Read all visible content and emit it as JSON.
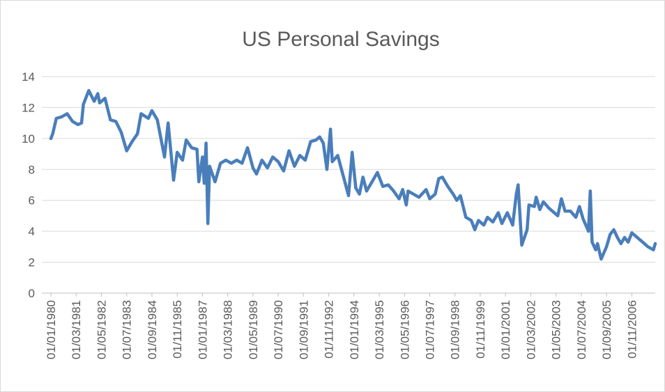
{
  "chart_data": {
    "type": "line",
    "title": "US Personal Savings",
    "x": [
      "01/01/1980",
      "01/02/1980",
      "01/04/1980",
      "01/07/1980",
      "01/10/1980",
      "01/01/1981",
      "01/04/1981",
      "01/06/1981",
      "01/07/1981",
      "01/10/1981",
      "01/01/1982",
      "01/03/1982",
      "01/04/1982",
      "01/07/1982",
      "01/10/1982",
      "01/01/1983",
      "01/04/1983",
      "01/07/1983",
      "01/10/1983",
      "01/01/1984",
      "01/03/1984",
      "01/07/1984",
      "01/09/1984",
      "01/12/1984",
      "01/04/1985",
      "01/06/1985",
      "01/09/1985",
      "01/11/1985",
      "01/02/1986",
      "01/04/1986",
      "01/07/1986",
      "01/10/1986",
      "01/11/1986",
      "01/01/1987",
      "01/02/1987",
      "01/03/1987",
      "01/04/1987",
      "01/05/1987",
      "01/08/1987",
      "01/11/1987",
      "01/02/1988",
      "01/05/1988",
      "01/08/1988",
      "01/11/1988",
      "01/02/1989",
      "01/05/1989",
      "01/07/1989",
      "01/10/1989",
      "01/01/1990",
      "01/04/1990",
      "01/07/1990",
      "01/10/1990",
      "01/01/1991",
      "01/04/1991",
      "01/07/1991",
      "01/10/1991",
      "01/01/1992",
      "01/04/1992",
      "01/06/1992",
      "01/08/1992",
      "01/10/1992",
      "01/12/1992",
      "01/01/1993",
      "01/04/1993",
      "01/07/1993",
      "01/10/1993",
      "01/12/1993",
      "01/02/1994",
      "01/04/1994",
      "01/06/1994",
      "01/08/1994",
      "01/11/1994",
      "01/02/1995",
      "01/05/1995",
      "01/08/1995",
      "01/11/1995",
      "01/02/1996",
      "01/04/1996",
      "01/06/1996",
      "01/07/1996",
      "01/10/1996",
      "01/01/1997",
      "01/05/1997",
      "01/07/1997",
      "01/10/1997",
      "01/12/1997",
      "01/02/1998",
      "01/05/1998",
      "01/08/1998",
      "01/10/1998",
      "01/12/1998",
      "01/03/1999",
      "01/06/1999",
      "01/08/1999",
      "01/10/1999",
      "01/01/2000",
      "01/03/2000",
      "01/06/2000",
      "01/09/2000",
      "01/11/2000",
      "01/02/2001",
      "01/05/2001",
      "01/07/2001",
      "01/08/2001",
      "01/10/2001",
      "01/01/2002",
      "01/02/2002",
      "01/05/2002",
      "01/06/2002",
      "01/08/2002",
      "01/10/2002",
      "01/01/2003",
      "01/04/2003",
      "01/06/2003",
      "01/08/2003",
      "01/10/2003",
      "01/01/2004",
      "01/04/2004",
      "01/06/2004",
      "01/08/2004",
      "01/11/2004",
      "01/12/2004",
      "01/01/2005",
      "01/03/2005",
      "01/04/2005",
      "01/06/2005",
      "01/09/2005",
      "01/11/2005",
      "01/01/2006",
      "01/03/2006",
      "01/05/2006",
      "01/07/2006",
      "01/09/2006",
      "01/11/2006",
      "01/02/2007",
      "01/05/2007",
      "01/08/2007",
      "01/11/2007",
      "01/12/2007"
    ],
    "series": [
      {
        "color": "#4a7ebb",
        "values": [
          10.0,
          10.3,
          11.3,
          11.4,
          11.6,
          11.1,
          10.9,
          11.0,
          12.2,
          13.1,
          12.4,
          12.9,
          12.3,
          12.6,
          11.2,
          11.1,
          10.4,
          9.2,
          9.8,
          10.3,
          11.6,
          11.3,
          11.8,
          11.2,
          8.8,
          11.0,
          7.3,
          9.1,
          8.6,
          9.9,
          9.4,
          9.3,
          7.2,
          8.8,
          7.1,
          9.7,
          4.5,
          8.2,
          7.2,
          8.4,
          8.6,
          8.4,
          8.6,
          8.4,
          9.4,
          8.1,
          7.7,
          8.6,
          8.1,
          8.8,
          8.5,
          7.9,
          9.2,
          8.2,
          8.9,
          8.6,
          9.8,
          9.9,
          10.1,
          9.7,
          8.0,
          10.6,
          8.5,
          8.9,
          7.6,
          6.3,
          9.1,
          6.8,
          6.4,
          7.5,
          6.6,
          7.2,
          7.8,
          6.9,
          7.0,
          6.6,
          6.1,
          6.7,
          5.7,
          6.6,
          6.4,
          6.2,
          6.7,
          6.1,
          6.4,
          7.4,
          7.5,
          6.9,
          6.4,
          6.0,
          6.3,
          4.9,
          4.7,
          4.1,
          4.7,
          4.4,
          4.9,
          4.6,
          5.2,
          4.5,
          5.2,
          4.4,
          6.4,
          7.0,
          3.1,
          4.1,
          5.7,
          5.6,
          6.2,
          5.4,
          5.9,
          5.5,
          5.2,
          5.0,
          6.1,
          5.3,
          5.3,
          4.9,
          5.6,
          4.8,
          4.0,
          6.6,
          3.3,
          2.8,
          3.2,
          2.2,
          3.0,
          3.8,
          4.1,
          3.6,
          3.2,
          3.6,
          3.3,
          3.9,
          3.6,
          3.3,
          3.0,
          2.8,
          3.2
        ]
      }
    ],
    "xlim": [
      "01/01/1980",
      "01/12/2007"
    ],
    "xticks": [
      "01/01/1980",
      "01/03/1981",
      "01/05/1982",
      "01/07/1983",
      "01/09/1984",
      "01/11/1985",
      "01/01/1987",
      "01/03/1988",
      "01/05/1989",
      "01/07/1990",
      "01/09/1991",
      "01/11/1992",
      "01/01/1994",
      "01/03/1995",
      "01/05/1996",
      "01/07/1997",
      "01/09/1998",
      "01/11/1999",
      "01/01/2001",
      "01/03/2002",
      "01/05/2003",
      "01/07/2004",
      "01/09/2005",
      "01/11/2006"
    ],
    "ylim": [
      0,
      14
    ],
    "yticks": [
      0,
      2,
      4,
      6,
      8,
      10,
      12,
      14
    ],
    "grid": true
  }
}
